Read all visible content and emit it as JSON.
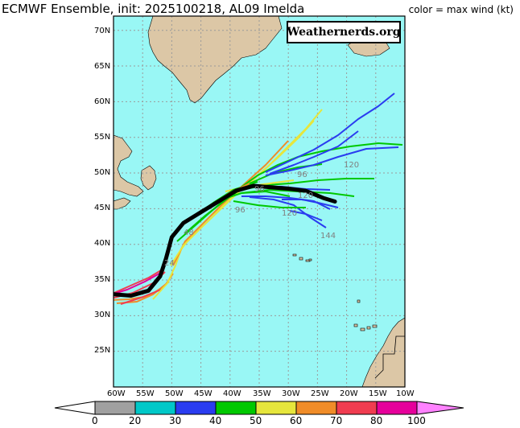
{
  "header": {
    "title": "ECMWF Ensemble, init: 2025100218, AL09 Imelda",
    "legend_note": "color = max wind (kt)"
  },
  "watermark": "Weathernerds.org",
  "map": {
    "lon_range": [
      -60,
      -10
    ],
    "lat_range": [
      20,
      72
    ],
    "lat_ticks": [
      "70N",
      "65N",
      "60N",
      "55N",
      "50N",
      "45N",
      "40N",
      "35N",
      "30N",
      "25N"
    ],
    "lon_ticks": [
      "60W",
      "55W",
      "50W",
      "45W",
      "40W",
      "35W",
      "30W",
      "25W",
      "20W",
      "15W",
      "10W"
    ],
    "ocean_color": "#99f7f5",
    "land_color": "#dcc7a6",
    "hour_labels": [
      "24",
      "48",
      "72",
      "96",
      "96",
      "96",
      "120",
      "120",
      "120",
      "144"
    ]
  },
  "colorbar": {
    "labels": [
      "0",
      "20",
      "30",
      "40",
      "50",
      "60",
      "70",
      "80",
      "100"
    ],
    "colors": [
      "#ffffff",
      "#a0a0a0",
      "#00c8c8",
      "#2a3cf0",
      "#00c800",
      "#e6e63c",
      "#f08c28",
      "#f03c50",
      "#e6009b",
      "#ff82ff"
    ]
  },
  "mean_track": [
    [
      -60,
      33
    ],
    [
      -57,
      32.8
    ],
    [
      -54,
      33.5
    ],
    [
      -52,
      35.5
    ],
    [
      -51,
      38
    ],
    [
      -50,
      41
    ],
    [
      -48,
      43
    ],
    [
      -45,
      44.5
    ],
    [
      -42,
      46
    ],
    [
      -39,
      47.5
    ],
    [
      -36,
      48.2
    ],
    [
      -33,
      48
    ],
    [
      -30,
      47.8
    ],
    [
      -27,
      47.5
    ],
    [
      -24,
      46.5
    ],
    [
      -22,
      46
    ]
  ]
}
